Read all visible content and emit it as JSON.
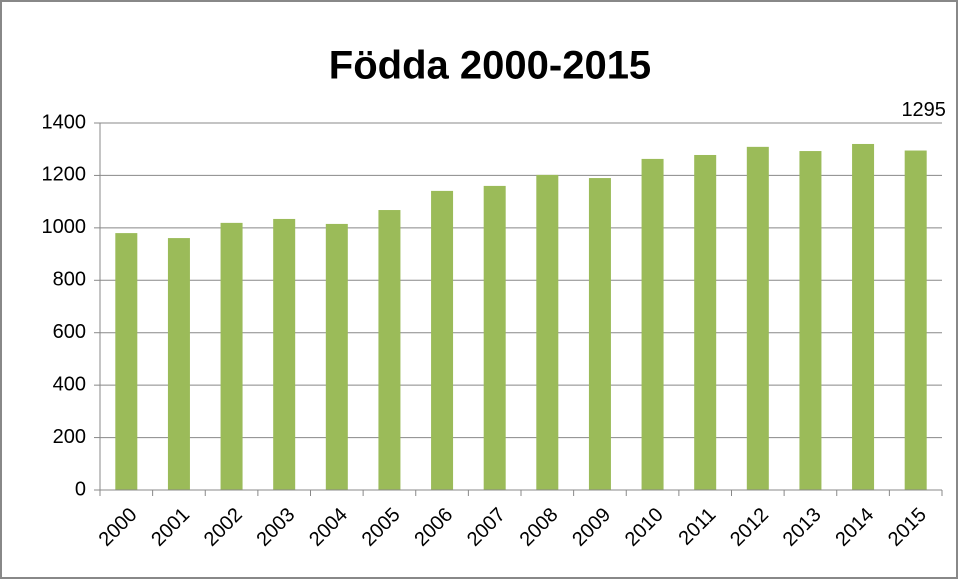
{
  "chart_data": {
    "type": "bar",
    "title": "Födda 2000-2015",
    "categories": [
      "2000",
      "2001",
      "2002",
      "2003",
      "2004",
      "2005",
      "2006",
      "2007",
      "2008",
      "2009",
      "2010",
      "2011",
      "2012",
      "2013",
      "2014",
      "2015"
    ],
    "values": [
      980,
      961,
      1019,
      1034,
      1015,
      1068,
      1141,
      1160,
      1202,
      1190,
      1263,
      1278,
      1309,
      1293,
      1320,
      1295
    ],
    "value_labels": [
      null,
      null,
      null,
      null,
      null,
      null,
      null,
      null,
      null,
      null,
      null,
      null,
      null,
      null,
      null,
      "1295"
    ],
    "color": "#9bbb59",
    "ylim": [
      0,
      1400
    ],
    "yticks": [
      0,
      200,
      400,
      600,
      800,
      1000,
      1200,
      1400
    ],
    "grid": true
  }
}
